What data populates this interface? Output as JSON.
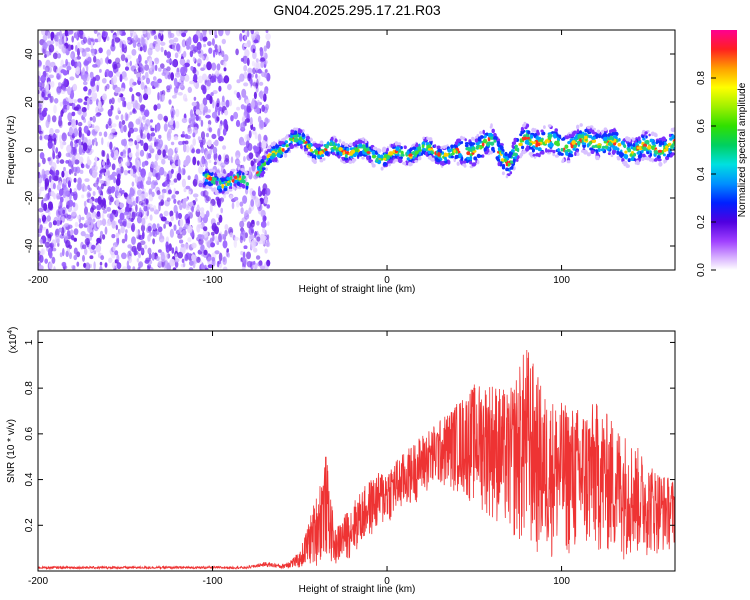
{
  "title": "GN04.2025.295.17.21.R03",
  "chart_data": [
    {
      "type": "heatmap",
      "name": "spectrogram",
      "xlabel": "Height of straight line (km)",
      "ylabel": "Frequency (Hz)",
      "xlim": [
        -200,
        165
      ],
      "ylim": [
        -50,
        50
      ],
      "xticks": [
        -200,
        -100,
        0,
        100
      ],
      "yticks": [
        -40,
        -20,
        0,
        20,
        40
      ],
      "colorbar": {
        "label": "Normalized spectral amplitude",
        "range": [
          0,
          1
        ],
        "ticks": [
          0.0,
          0.2,
          0.4,
          0.6,
          0.8
        ]
      },
      "ridge": {
        "description_points_x": [
          -105,
          -80,
          -70,
          -55,
          -40,
          -20,
          0,
          20,
          40,
          60,
          70,
          80,
          100,
          120,
          140,
          165
        ],
        "description_points_y": [
          -13,
          -13,
          -6,
          5,
          0,
          0,
          -3,
          0,
          -2,
          3,
          -5,
          5,
          2,
          4,
          0,
          2
        ]
      },
      "noise_region_x": [
        -200,
        -68
      ]
    },
    {
      "type": "line",
      "name": "snr",
      "xlabel": "Height of straight line (km)",
      "ylabel": "SNR (10 * v/v)",
      "y_multiplier": "(x10^4)",
      "y_multiplier_base": "(x10",
      "y_multiplier_exp": "4",
      "y_multiplier_close": ")",
      "xlim": [
        -200,
        165
      ],
      "ylim": [
        0,
        1.05
      ],
      "xticks": [
        -200,
        -100,
        0,
        100
      ],
      "yticks": [
        0.2,
        0.4,
        0.6,
        0.8,
        1.0
      ],
      "color": "#ee3333",
      "envelope": {
        "x": [
          -200,
          -80,
          -70,
          -60,
          -50,
          -40,
          -35,
          -30,
          -20,
          -10,
          0,
          10,
          20,
          30,
          40,
          50,
          60,
          70,
          80,
          90,
          100,
          110,
          120,
          130,
          140,
          150,
          160,
          165
        ],
        "upper": [
          0.02,
          0.02,
          0.04,
          0.03,
          0.08,
          0.35,
          0.52,
          0.18,
          0.3,
          0.4,
          0.46,
          0.52,
          0.6,
          0.66,
          0.74,
          0.82,
          0.84,
          0.78,
          1.0,
          0.78,
          0.74,
          0.72,
          0.74,
          0.66,
          0.58,
          0.48,
          0.42,
          0.4
        ],
        "lower": [
          0.01,
          0.01,
          0.02,
          0.01,
          0.01,
          0.02,
          0.05,
          0.02,
          0.06,
          0.14,
          0.2,
          0.26,
          0.32,
          0.36,
          0.34,
          0.28,
          0.22,
          0.14,
          0.06,
          0.04,
          0.06,
          0.04,
          0.06,
          0.05,
          0.05,
          0.06,
          0.08,
          0.1
        ]
      }
    }
  ]
}
